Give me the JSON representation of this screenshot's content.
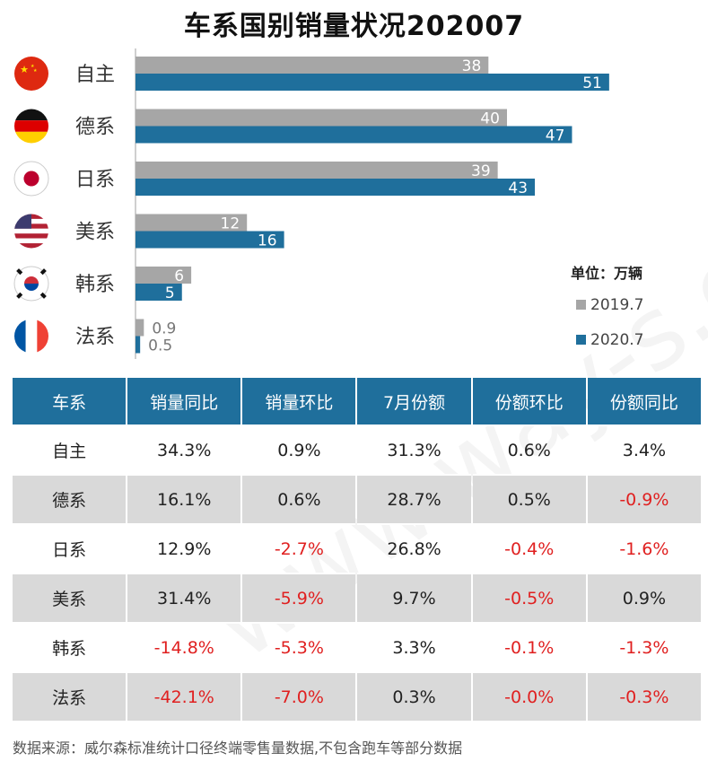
{
  "title": "车系国别销量状况202007",
  "chart_data": {
    "type": "bar",
    "orientation": "horizontal",
    "categories": [
      "自主",
      "德系",
      "日系",
      "美系",
      "韩系",
      "法系"
    ],
    "flag_icons": [
      "china-flag-icon",
      "germany-flag-icon",
      "japan-flag-icon",
      "usa-flag-icon",
      "korea-flag-icon",
      "france-flag-icon"
    ],
    "series": [
      {
        "name": "2019.7",
        "values": [
          38,
          40,
          39,
          12,
          6,
          0.9
        ],
        "labels": [
          "38",
          "40",
          "39",
          "12",
          "6",
          "0.9"
        ],
        "color": "#a6a6a6"
      },
      {
        "name": "2020.7",
        "values": [
          51,
          47,
          43,
          16,
          5,
          0.5
        ],
        "labels": [
          "51",
          "47",
          "43",
          "16",
          "5",
          "0.5"
        ],
        "color": "#1f6f9c"
      }
    ],
    "unit_label": "单位：万辆",
    "xlim": [
      0,
      51
    ]
  },
  "table": {
    "headers": [
      "车系",
      "销量同比",
      "销量环比",
      "7月份额",
      "份额环比",
      "份额同比"
    ],
    "rows": [
      [
        "自主",
        "34.3%",
        "0.9%",
        "31.3%",
        "0.6%",
        "3.4%"
      ],
      [
        "德系",
        "16.1%",
        "0.6%",
        "28.7%",
        "0.5%",
        "-0.9%"
      ],
      [
        "日系",
        "12.9%",
        "-2.7%",
        "26.8%",
        "-0.4%",
        "-1.6%"
      ],
      [
        "美系",
        "31.4%",
        "-5.9%",
        "9.7%",
        "-0.5%",
        "0.9%"
      ],
      [
        "韩系",
        "-14.8%",
        "-5.3%",
        "3.3%",
        "-0.1%",
        "-1.3%"
      ],
      [
        "法系",
        "-42.1%",
        "-7.0%",
        "0.3%",
        "-0.0%",
        "-0.3%"
      ]
    ],
    "header_color": "#1f6f9c",
    "negative_color": "#e02020"
  },
  "watermark": "www.way-s.cn",
  "footer": "数据来源：威尔森标准统计口径终端零售量数据,不包含跑车等部分数据"
}
